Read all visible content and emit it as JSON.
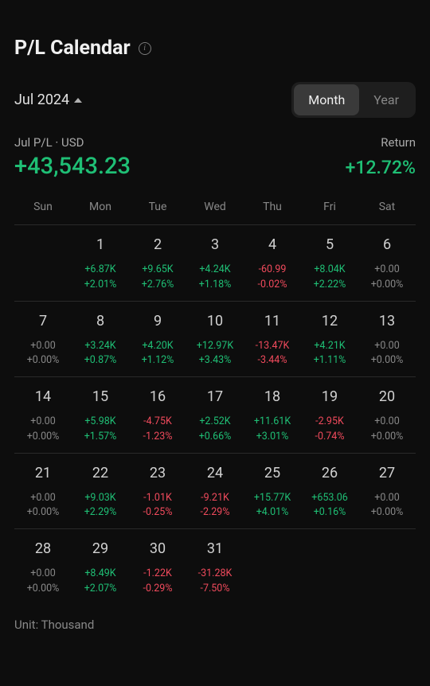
{
  "title": "P/L Calendar",
  "period": "Jul 2024",
  "toggle": {
    "month": "Month",
    "year": "Year",
    "active": "month"
  },
  "summary": {
    "pl_label": "Jul P/L · USD",
    "return_label": "Return",
    "pl_value": "+43,543.23",
    "return_value": "+12.72%"
  },
  "colors": {
    "positive": "#1fbf75",
    "negative": "#f04a5c",
    "zero": "#888888",
    "background": "#0d0d0d"
  },
  "weekdays": [
    "Sun",
    "Mon",
    "Tue",
    "Wed",
    "Thu",
    "Fri",
    "Sat"
  ],
  "first_day_index": 1,
  "days": [
    {
      "n": 1,
      "amt": "+6.87K",
      "pct": "+2.01%",
      "cls": "pos"
    },
    {
      "n": 2,
      "amt": "+9.65K",
      "pct": "+2.76%",
      "cls": "pos"
    },
    {
      "n": 3,
      "amt": "+4.24K",
      "pct": "+1.18%",
      "cls": "pos"
    },
    {
      "n": 4,
      "amt": "-60.99",
      "pct": "-0.02%",
      "cls": "neg"
    },
    {
      "n": 5,
      "amt": "+8.04K",
      "pct": "+2.22%",
      "cls": "pos"
    },
    {
      "n": 6,
      "amt": "+0.00",
      "pct": "+0.00%",
      "cls": "zero"
    },
    {
      "n": 7,
      "amt": "+0.00",
      "pct": "+0.00%",
      "cls": "zero"
    },
    {
      "n": 8,
      "amt": "+3.24K",
      "pct": "+0.87%",
      "cls": "pos"
    },
    {
      "n": 9,
      "amt": "+4.20K",
      "pct": "+1.12%",
      "cls": "pos"
    },
    {
      "n": 10,
      "amt": "+12.97K",
      "pct": "+3.43%",
      "cls": "pos"
    },
    {
      "n": 11,
      "amt": "-13.47K",
      "pct": "-3.44%",
      "cls": "neg"
    },
    {
      "n": 12,
      "amt": "+4.21K",
      "pct": "+1.11%",
      "cls": "pos"
    },
    {
      "n": 13,
      "amt": "+0.00",
      "pct": "+0.00%",
      "cls": "zero"
    },
    {
      "n": 14,
      "amt": "+0.00",
      "pct": "+0.00%",
      "cls": "zero"
    },
    {
      "n": 15,
      "amt": "+5.98K",
      "pct": "+1.57%",
      "cls": "pos"
    },
    {
      "n": 16,
      "amt": "-4.75K",
      "pct": "-1.23%",
      "cls": "neg"
    },
    {
      "n": 17,
      "amt": "+2.52K",
      "pct": "+0.66%",
      "cls": "pos"
    },
    {
      "n": 18,
      "amt": "+11.61K",
      "pct": "+3.01%",
      "cls": "pos"
    },
    {
      "n": 19,
      "amt": "-2.95K",
      "pct": "-0.74%",
      "cls": "neg"
    },
    {
      "n": 20,
      "amt": "+0.00",
      "pct": "+0.00%",
      "cls": "zero"
    },
    {
      "n": 21,
      "amt": "+0.00",
      "pct": "+0.00%",
      "cls": "zero"
    },
    {
      "n": 22,
      "amt": "+9.03K",
      "pct": "+2.29%",
      "cls": "pos"
    },
    {
      "n": 23,
      "amt": "-1.01K",
      "pct": "-0.25%",
      "cls": "neg"
    },
    {
      "n": 24,
      "amt": "-9.21K",
      "pct": "-2.29%",
      "cls": "neg"
    },
    {
      "n": 25,
      "amt": "+15.77K",
      "pct": "+4.01%",
      "cls": "pos"
    },
    {
      "n": 26,
      "amt": "+653.06",
      "pct": "+0.16%",
      "cls": "pos"
    },
    {
      "n": 27,
      "amt": "+0.00",
      "pct": "+0.00%",
      "cls": "zero"
    },
    {
      "n": 28,
      "amt": "+0.00",
      "pct": "+0.00%",
      "cls": "zero"
    },
    {
      "n": 29,
      "amt": "+8.49K",
      "pct": "+2.07%",
      "cls": "pos"
    },
    {
      "n": 30,
      "amt": "-1.22K",
      "pct": "-0.29%",
      "cls": "neg"
    },
    {
      "n": 31,
      "amt": "-31.28K",
      "pct": "-7.50%",
      "cls": "neg"
    }
  ],
  "unit_label": "Unit: Thousand"
}
